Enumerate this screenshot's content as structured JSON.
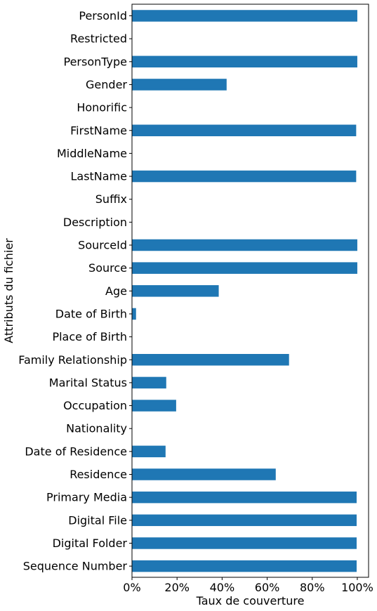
{
  "chart_data": {
    "type": "bar",
    "orientation": "horizontal",
    "title": "",
    "xlabel": "Taux de couverture",
    "ylabel": "Attributs du fichier",
    "xlim": [
      0,
      1.05
    ],
    "xticks": [
      0,
      0.2,
      0.4,
      0.6,
      0.8,
      1.0
    ],
    "xtick_labels": [
      "0%",
      "20%",
      "40%",
      "60%",
      "80%",
      "100%"
    ],
    "grid": false,
    "legend": "none",
    "bar_color": "#1f77b4",
    "categories": [
      "PersonId",
      "Restricted",
      "PersonType",
      "Gender",
      "Honorific",
      "FirstName",
      "MiddleName",
      "LastName",
      "Suffix",
      "Description",
      "SourceId",
      "Source",
      "Age",
      "Date of Birth",
      "Place of Birth",
      "Family Relationship",
      "Marital Status",
      "Occupation",
      "Nationality",
      "Date of Residence",
      "Residence",
      "Primary Media",
      "Digital File",
      "Digital Folder",
      "Sequence Number"
    ],
    "values": [
      1.0,
      0.0,
      1.0,
      0.42,
      0.0,
      0.995,
      0.0,
      0.995,
      0.0,
      0.0,
      1.0,
      1.0,
      0.385,
      0.018,
      0.0,
      0.697,
      0.152,
      0.196,
      0.0,
      0.149,
      0.638,
      0.997,
      0.997,
      0.997,
      0.997
    ]
  }
}
